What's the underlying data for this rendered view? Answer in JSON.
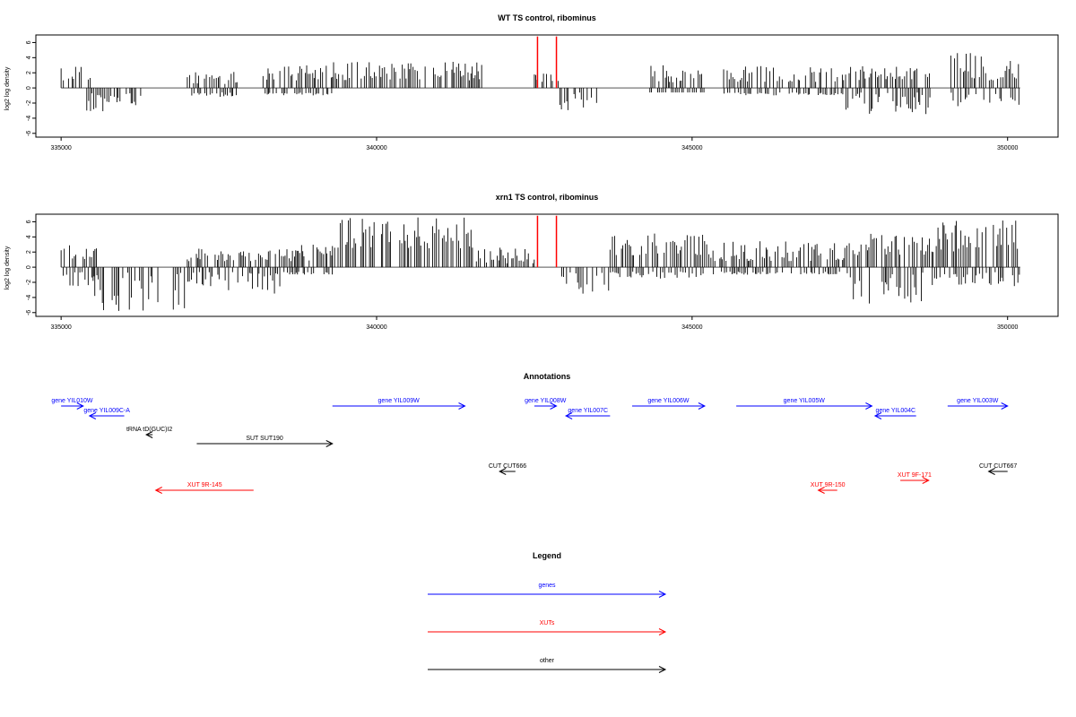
{
  "chart_data": [
    {
      "type": "bar",
      "title": "WT TS control, ribominus",
      "xlabel": "",
      "ylabel": "log2 log density",
      "xlim": [
        334600,
        350800
      ],
      "ylim": [
        -6.5,
        7
      ],
      "xticks": [
        335000,
        340000,
        345000,
        350000
      ],
      "xtick_labels": [
        "335000",
        "340000",
        "345000",
        "350000"
      ],
      "yticks": [
        -6,
        -4,
        -2,
        0,
        2,
        4,
        6
      ],
      "ytick_labels": [
        "-6",
        "-4",
        "-2",
        "0",
        "2",
        "4",
        "6"
      ],
      "grid": false,
      "bar_color": "#000000",
      "highlight_color": "#ff0000",
      "highlights": [
        {
          "x": 342550,
          "y": 6.8
        },
        {
          "x": 342850,
          "y": 6.8
        }
      ],
      "segments": [
        {
          "from": 335000,
          "to": 335500,
          "min": 1.0,
          "max": 3.0,
          "neg": 0
        },
        {
          "from": 335400,
          "to": 335750,
          "min": 0,
          "max": 0,
          "neg": 4.2
        },
        {
          "from": 335750,
          "to": 336300,
          "min": 0,
          "max": 0,
          "neg": 2.5
        },
        {
          "from": 337000,
          "to": 337800,
          "min": 0.5,
          "max": 2.2,
          "neg": 1.2
        },
        {
          "from": 338200,
          "to": 339300,
          "min": 0.8,
          "max": 3.0,
          "neg": 1.0
        },
        {
          "from": 339300,
          "to": 341700,
          "min": 1.0,
          "max": 3.5,
          "neg": 0
        },
        {
          "from": 342500,
          "to": 342900,
          "min": 0.8,
          "max": 2.2,
          "neg": 0
        },
        {
          "from": 342900,
          "to": 343500,
          "min": 0,
          "max": 0,
          "neg": 3.2
        },
        {
          "from": 344300,
          "to": 345200,
          "min": 0.6,
          "max": 3.0,
          "neg": 0.6
        },
        {
          "from": 345500,
          "to": 347400,
          "min": 0.8,
          "max": 3.0,
          "neg": 1.0
        },
        {
          "from": 347400,
          "to": 348800,
          "min": 1.0,
          "max": 3.0,
          "neg": 3.6
        },
        {
          "from": 349100,
          "to": 350200,
          "min": 1.0,
          "max": 4.6,
          "neg": 2.6
        }
      ]
    },
    {
      "type": "bar",
      "title": "xrn1 TS control, ribominus",
      "xlabel": "",
      "ylabel": "log2 log density",
      "xlim": [
        334600,
        350800
      ],
      "ylim": [
        -6.5,
        7
      ],
      "xticks": [
        335000,
        340000,
        345000,
        350000
      ],
      "xtick_labels": [
        "335000",
        "340000",
        "345000",
        "350000"
      ],
      "yticks": [
        -6,
        -4,
        -2,
        0,
        2,
        4,
        6
      ],
      "ytick_labels": [
        "-6",
        "-4",
        "-2",
        "0",
        "2",
        "4",
        "6"
      ],
      "grid": false,
      "bar_color": "#000000",
      "highlight_color": "#ff0000",
      "highlights": [
        {
          "x": 342550,
          "y": 6.8
        },
        {
          "x": 342850,
          "y": 6.8
        }
      ],
      "segments": [
        {
          "from": 335000,
          "to": 335600,
          "min": 1.0,
          "max": 4.0,
          "neg": 2.5
        },
        {
          "from": 335500,
          "to": 337000,
          "min": 0,
          "max": 0,
          "neg": 5.8
        },
        {
          "from": 337000,
          "to": 338500,
          "min": 0.8,
          "max": 2.5,
          "neg": 3.5
        },
        {
          "from": 338500,
          "to": 339300,
          "min": 0.8,
          "max": 3.0,
          "neg": 1.0
        },
        {
          "from": 339300,
          "to": 341500,
          "min": 2.5,
          "max": 6.8,
          "neg": 0
        },
        {
          "from": 341500,
          "to": 342500,
          "min": 0.5,
          "max": 2.6,
          "neg": 0
        },
        {
          "from": 342900,
          "to": 343700,
          "min": 0,
          "max": 0,
          "neg": 4.0
        },
        {
          "from": 343700,
          "to": 345200,
          "min": 1.5,
          "max": 4.5,
          "neg": 1.5
        },
        {
          "from": 345200,
          "to": 347500,
          "min": 0.8,
          "max": 3.5,
          "neg": 1.0
        },
        {
          "from": 347500,
          "to": 348800,
          "min": 1.5,
          "max": 4.5,
          "neg": 4.8
        },
        {
          "from": 348800,
          "to": 350200,
          "min": 2.0,
          "max": 6.2,
          "neg": 2.5
        }
      ]
    }
  ],
  "annotations": {
    "title": "Annotations",
    "items": [
      {
        "label": "gene YIL010W",
        "color": "#0000ff",
        "start": 335000,
        "end": 335350,
        "dir": "right",
        "lane": 0
      },
      {
        "label": "gene YIL009C-A",
        "color": "#0000ff",
        "start": 335450,
        "end": 336000,
        "dir": "left",
        "lane": 1
      },
      {
        "label": "tRNA tD(GUC)I2",
        "color": "#000000",
        "start": 336350,
        "end": 336450,
        "dir": "left",
        "lane": 2
      },
      {
        "label": "SUT SUT190",
        "color": "#000000",
        "start": 337150,
        "end": 339300,
        "dir": "right",
        "lane": 3
      },
      {
        "label": "gene YIL009W",
        "color": "#0000ff",
        "start": 339300,
        "end": 341400,
        "dir": "right",
        "lane": 0
      },
      {
        "label": "gene YIL008W",
        "color": "#0000ff",
        "start": 342500,
        "end": 342850,
        "dir": "right",
        "lane": 0
      },
      {
        "label": "gene YIL007C",
        "color": "#0000ff",
        "start": 343000,
        "end": 343700,
        "dir": "left",
        "lane": 1
      },
      {
        "label": "gene YIL006W",
        "color": "#0000ff",
        "start": 344050,
        "end": 345200,
        "dir": "right",
        "lane": 0
      },
      {
        "label": "gene YIL005W",
        "color": "#0000ff",
        "start": 345700,
        "end": 347850,
        "dir": "right",
        "lane": 0
      },
      {
        "label": "gene YIL004C",
        "color": "#0000ff",
        "start": 347900,
        "end": 348550,
        "dir": "left",
        "lane": 1
      },
      {
        "label": "gene YIL003W",
        "color": "#0000ff",
        "start": 349050,
        "end": 350000,
        "dir": "right",
        "lane": 0
      },
      {
        "label": "CUT CUT666",
        "color": "#000000",
        "start": 341950,
        "end": 342200,
        "dir": "left",
        "lane": 5
      },
      {
        "label": "CUT CUT667",
        "color": "#000000",
        "start": 349700,
        "end": 350000,
        "dir": "left",
        "lane": 5
      },
      {
        "label": "XUT 9R-145",
        "color": "#ff0000",
        "start": 336500,
        "end": 338050,
        "dir": "left",
        "lane": 7
      },
      {
        "label": "XUT 9R-150",
        "color": "#ff0000",
        "start": 347000,
        "end": 347300,
        "dir": "left",
        "lane": 7
      },
      {
        "label": "XUT 9F-171",
        "color": "#ff0000",
        "start": 348300,
        "end": 348750,
        "dir": "right",
        "lane": 6
      }
    ]
  },
  "legend": {
    "title": "Legend",
    "items": [
      {
        "label": "genes",
        "color": "#0000ff"
      },
      {
        "label": "XUTs",
        "color": "#ff0000"
      },
      {
        "label": "other",
        "color": "#000000"
      }
    ]
  }
}
